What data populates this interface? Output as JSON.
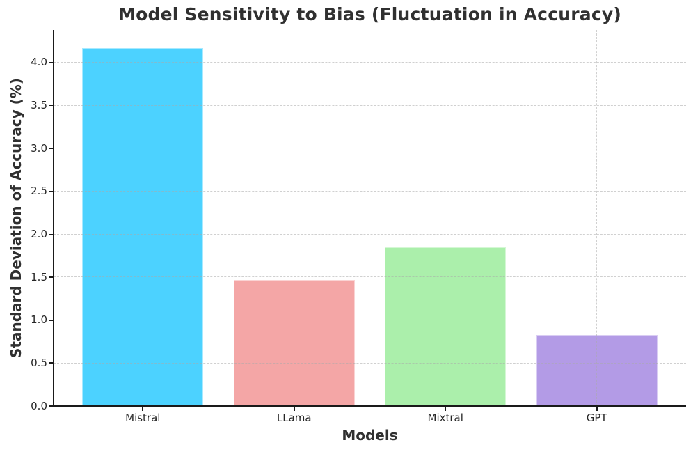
{
  "chart_data": {
    "type": "bar",
    "title": "Model Sensitivity to Bias (Fluctuation in Accuracy)",
    "xlabel": "Models",
    "ylabel": "Standard Deviation of Accuracy (%)",
    "categories": [
      "Mistral",
      "LLama",
      "Mixtral",
      "GPT"
    ],
    "values": [
      4.17,
      1.47,
      1.85,
      0.83
    ],
    "bar_colors": [
      "#4CD2FF",
      "#F4A6A6",
      "#ABEFAB",
      "#B39BE6"
    ],
    "ylim": [
      0,
      4.38
    ],
    "xlim": [
      -0.59,
      3.59
    ],
    "yticks": [
      0,
      0.5,
      1,
      1.5,
      2,
      2.5,
      3,
      3.5,
      4
    ],
    "bar_width_units": 0.8,
    "grid": {
      "style": "dashed",
      "axes": "both",
      "color": "#d7d7d7"
    },
    "legend": "none",
    "tick_color": "#262626",
    "title_color": "#303030",
    "spine_color": "#1a1a1a"
  }
}
